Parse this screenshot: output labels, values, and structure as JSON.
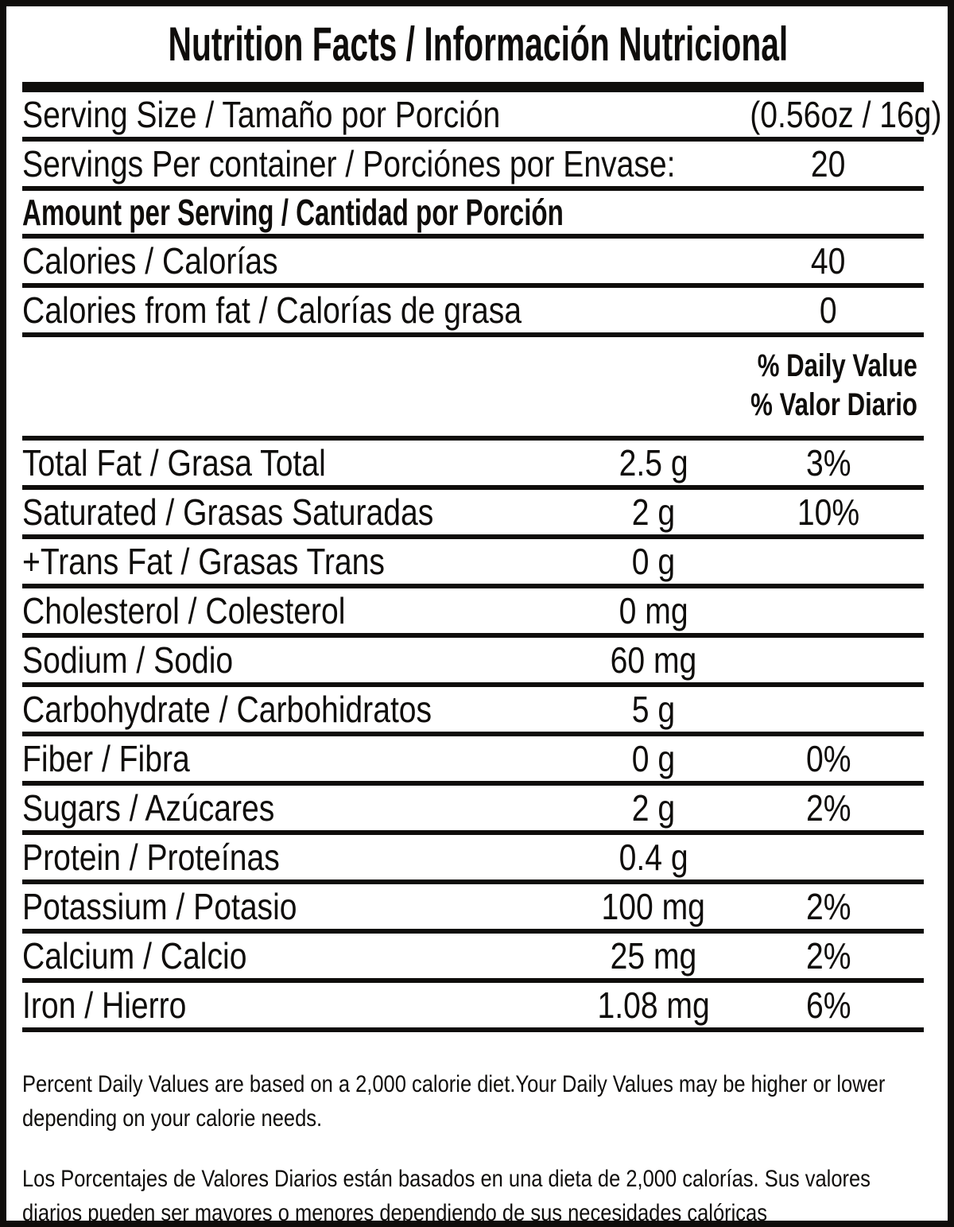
{
  "label": {
    "title": "Nutrition Facts / Información Nutricional",
    "serving": {
      "serving_size_label": "Serving Size / Tamaño por Porción",
      "serving_size_value": "(0.56oz / 16g)",
      "servings_per_container_label": "Servings Per container / Porciónes por Envase:",
      "servings_per_container_value": "20"
    },
    "amount_per_serving_heading": "Amount per Serving / Cantidad por Porción",
    "calories": {
      "label": "Calories / Calorías",
      "value": "40"
    },
    "calories_from_fat": {
      "label": "Calories from fat / Calorías de grasa",
      "value": "0"
    },
    "daily_value_heading": {
      "line1": "% Daily Value",
      "line2": "% Valor Diario"
    },
    "nutrients": [
      {
        "label": "Total Fat / Grasa Total",
        "amount": "2.5 g",
        "dv": "3%"
      },
      {
        "label": "Saturated / Grasas Saturadas",
        "amount": "2 g",
        "dv": "10%"
      },
      {
        "label": "+Trans Fat / Grasas Trans",
        "amount": "0 g",
        "dv": ""
      },
      {
        "label": "Cholesterol / Colesterol",
        "amount": "0 mg",
        "dv": ""
      },
      {
        "label": "Sodium / Sodio",
        "amount": "60 mg",
        "dv": ""
      },
      {
        "label": "Carbohydrate / Carbohidratos",
        "amount": "5 g",
        "dv": ""
      },
      {
        "label": "Fiber / Fibra",
        "amount": "0 g",
        "dv": "0%"
      },
      {
        "label": "Sugars / Azúcares",
        "amount": "2 g",
        "dv": "2%"
      },
      {
        "label": "Protein / Proteínas",
        "amount": "0.4 g",
        "dv": ""
      },
      {
        "label": "Potassium / Potasio",
        "amount": "100 mg",
        "dv": "2%"
      },
      {
        "label": "Calcium / Calcio",
        "amount": "25 mg",
        "dv": "2%"
      },
      {
        "label": "Iron / Hierro",
        "amount": "1.08 mg",
        "dv": "6%"
      }
    ],
    "footnotes": {
      "english": "Percent Daily Values are based on a 2,000 calorie diet.Your Daily Values may be higher or lower depending on your calorie needs.",
      "spanish": "Los Porcentajes de Valores Diarios están basados en una dieta de 2,000 calorías. Sus valores diarios pueden ser mayores o menores dependiendo de sus necesidades calóricas"
    },
    "colors": {
      "ink": "#0f0d0b",
      "background": "#ffffff"
    }
  }
}
